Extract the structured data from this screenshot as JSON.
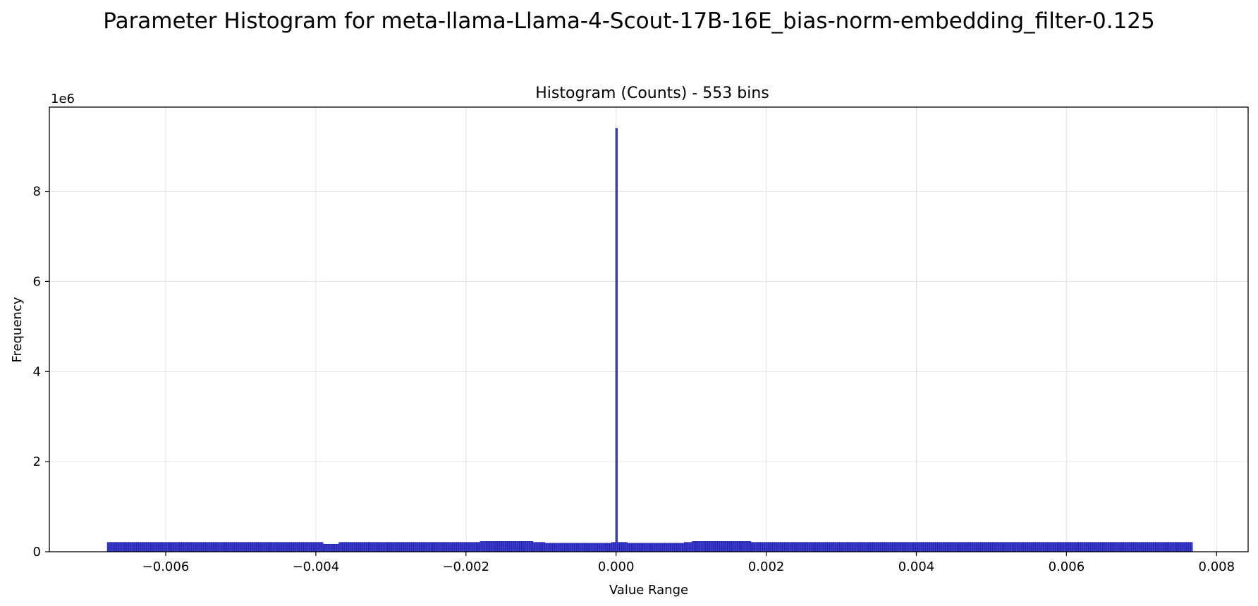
{
  "figure": {
    "suptitle": "Parameter Histogram for meta-llama-Llama-4-Scout-17B-16E_bias-norm-embedding_filter-0.125"
  },
  "chart_data": {
    "type": "bar",
    "title": "Histogram (Counts) - 553 bins",
    "xlabel": "Value Range",
    "ylabel": "Frequency",
    "y_offset_label": "1e6",
    "xlim": [
      -0.00755,
      0.00842
    ],
    "ylim": [
      0,
      9.87
    ],
    "x_ticks": [
      -0.006,
      -0.004,
      -0.002,
      0.0,
      0.002,
      0.004,
      0.006,
      0.008
    ],
    "x_tick_labels": [
      "−0.006",
      "−0.004",
      "−0.002",
      "0.000",
      "0.002",
      "0.004",
      "0.006",
      "0.008"
    ],
    "y_ticks": [
      0,
      2,
      4,
      6,
      8
    ],
    "y_tick_labels": [
      "0",
      "2",
      "4",
      "6",
      "8"
    ],
    "grid": true,
    "bin_count": 553,
    "bin_range": [
      -0.00678,
      0.00768
    ],
    "baseline_level": 0.21,
    "dip_regions": [
      {
        "from": -0.0039,
        "to": -0.0037,
        "level": 0.17
      },
      {
        "from": -0.00095,
        "to": -5e-05,
        "level": 0.19
      },
      {
        "from": 0.00015,
        "to": 0.0009,
        "level": 0.19
      }
    ],
    "bump_regions": [
      {
        "from": -0.0018,
        "to": -0.0011,
        "level": 0.23
      },
      {
        "from": 0.001,
        "to": 0.0018,
        "level": 0.23
      }
    ],
    "spike": {
      "x": 0.0,
      "value": 9.4
    },
    "bar_color": "#3a3acc",
    "edge_color": "#000080"
  }
}
